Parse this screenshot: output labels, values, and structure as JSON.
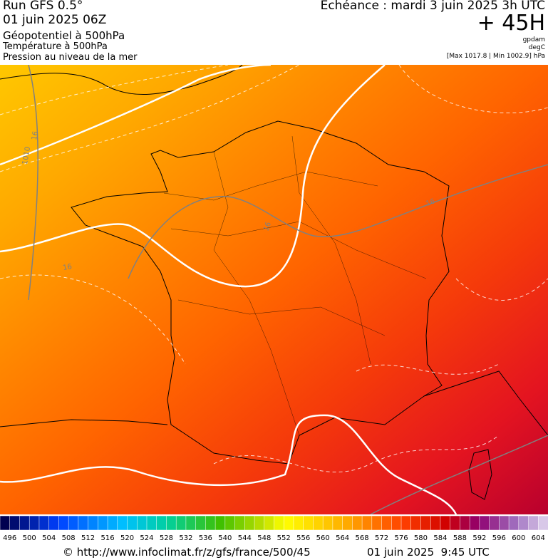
{
  "header": {
    "run": "Run GFS 0.5°",
    "date": "01 juin 2025 06Z",
    "title": "Géopotentiel à 500hPa",
    "subtitle1": "Température à 500hPa",
    "subtitle2": "Pression au niveau de la mer",
    "forecast": "Echéance : mardi 3 juin 2025 3h UTC",
    "lead": "+ 45H",
    "unit1": "gpdam",
    "unit2": "degC",
    "unit3": "[Max 1017.8 | Min 1002.9] hPa"
  },
  "map": {
    "contour_labels": [
      "16",
      "1010",
      "16",
      "16",
      "16"
    ]
  },
  "colorbar": {
    "labels": [
      496,
      500,
      504,
      508,
      512,
      516,
      520,
      524,
      528,
      532,
      536,
      540,
      544,
      548,
      552,
      556,
      560,
      564,
      568,
      572,
      576,
      580,
      584,
      588,
      592,
      596,
      600,
      604
    ]
  },
  "footer": {
    "source": "© http://www.infoclimat.fr/z/gfs/france/500/45",
    "time": "01 juin 2025  9:45 UTC"
  }
}
